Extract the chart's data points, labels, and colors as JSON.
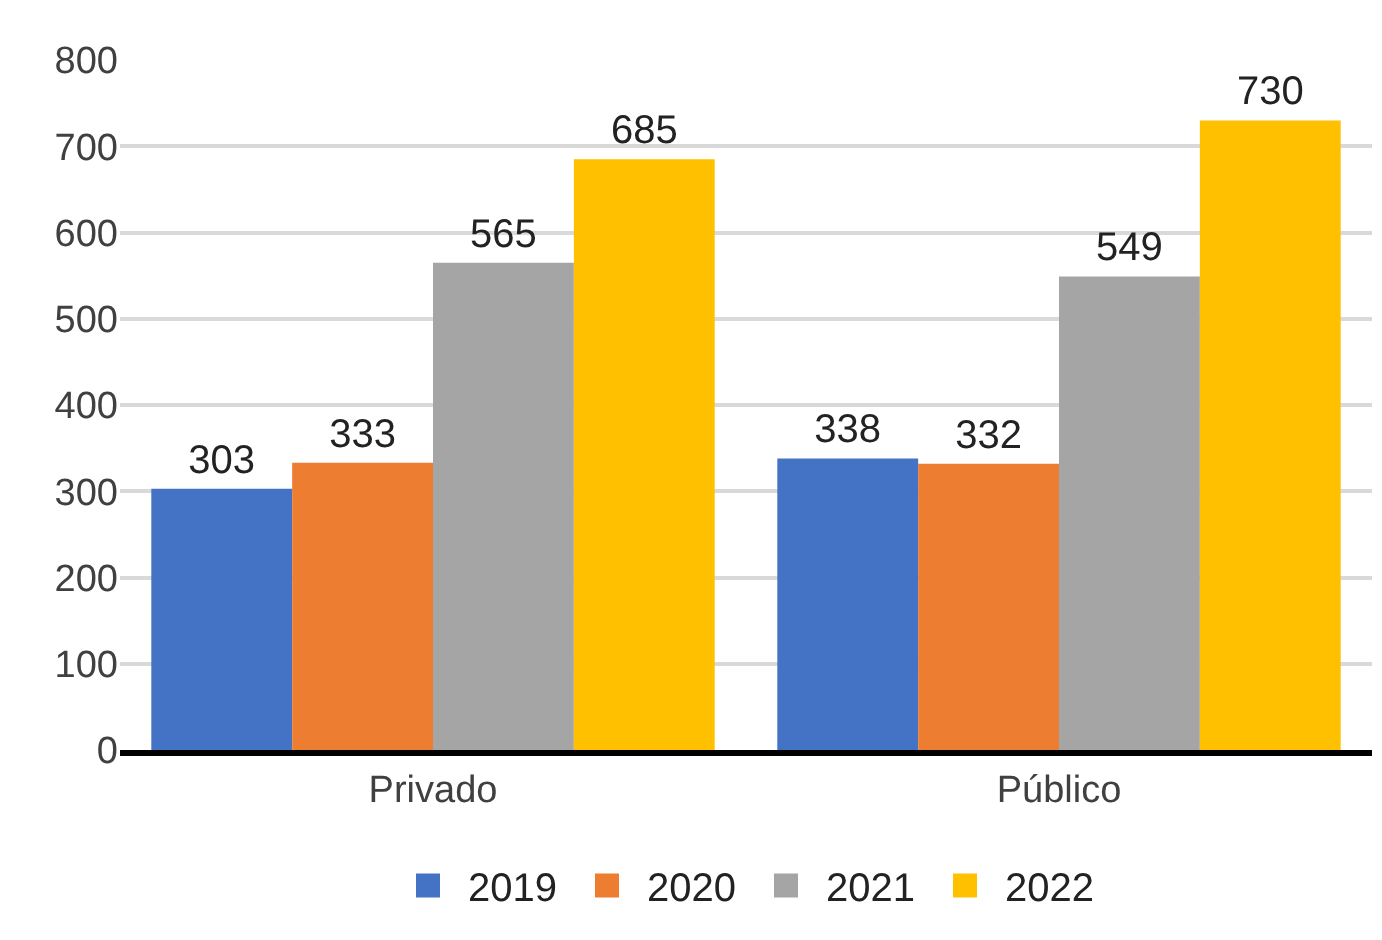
{
  "chart_data": {
    "type": "bar",
    "categories": [
      "Privado",
      "Público"
    ],
    "series": [
      {
        "name": "2019",
        "color": "#4472c4",
        "values": [
          303,
          338
        ]
      },
      {
        "name": "2020",
        "color": "#ed7d31",
        "values": [
          333,
          332
        ]
      },
      {
        "name": "2021",
        "color": "#a5a5a5",
        "values": [
          565,
          549
        ]
      },
      {
        "name": "2022",
        "color": "#ffc000",
        "values": [
          685,
          730
        ]
      }
    ],
    "ylim": [
      0,
      800
    ],
    "yticks": [
      0,
      100,
      200,
      300,
      400,
      500,
      600,
      700,
      800
    ],
    "grid": "y",
    "legend": "bottom",
    "data_labels": true
  }
}
